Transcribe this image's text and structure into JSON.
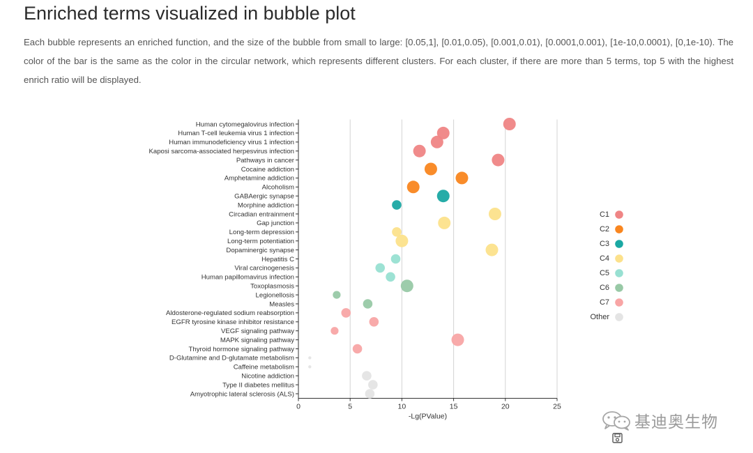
{
  "page": {
    "title": "Enriched terms visualized in bubble plot",
    "description": "Each bubble represents an enriched function, and the size of the bubble from small to large: [0.05,1], [0.01,0.05), [0.001,0.01), [0.0001,0.001), [1e-10,0.0001), [0,1e-10). The color of the bar is the same as the color in the circular network, which represents different clusters. For each cluster, if there are more than 5 terms, top 5 with the highest enrich ratio will be displayed."
  },
  "watermark": {
    "text": "基迪奥生物",
    "icon": "wechat-icon"
  },
  "save_icon": "save-icon",
  "chart_data": {
    "type": "scatter",
    "title": "",
    "xlabel": "-Lg(PValue)",
    "ylabel": "",
    "xlim": [
      0,
      25
    ],
    "xticks": [
      0,
      5,
      10,
      15,
      20,
      25
    ],
    "grid": "vertical",
    "legend_position": "right",
    "size_classes": [
      "[0.05,1]",
      "[0.01,0.05)",
      "[0.001,0.01)",
      "[0.0001,0.001)",
      "[1e-10,0.0001)",
      "[0,1e-10)"
    ],
    "clusters": [
      {
        "name": "C1",
        "color": "#ef8585"
      },
      {
        "name": "C2",
        "color": "#f9861f"
      },
      {
        "name": "C3",
        "color": "#1aa8a3"
      },
      {
        "name": "C4",
        "color": "#fce18b"
      },
      {
        "name": "C5",
        "color": "#98e0d2"
      },
      {
        "name": "C6",
        "color": "#98c9a6"
      },
      {
        "name": "C7",
        "color": "#f8a5a5"
      },
      {
        "name": "Other",
        "color": "#e4e4e4"
      }
    ],
    "categories": [
      "Human cytomegalovirus infection",
      "Human T-cell leukemia virus 1 infection",
      "Human immunodeficiency virus 1 infection",
      "Kaposi sarcoma-associated herpesvirus infection",
      "Pathways in cancer",
      "Cocaine addiction",
      "Amphetamine addiction",
      "Alcoholism",
      "GABAergic synapse",
      "Morphine addiction",
      "Circadian entrainment",
      "Gap junction",
      "Long-term depression",
      "Long-term potentiation",
      "Dopaminergic synapse",
      "Hepatitis C",
      "Viral carcinogenesis",
      "Human papillomavirus infection",
      "Toxoplasmosis",
      "Legionellosis",
      "Measles",
      "Aldosterone-regulated sodium reabsorption",
      "EGFR tyrosine kinase inhibitor resistance",
      "VEGF signaling pathway",
      "MAPK signaling pathway",
      "Thyroid hormone signaling pathway",
      "D-Glutamine and D-glutamate metabolism",
      "Caffeine metabolism",
      "Nicotine addiction",
      "Type II diabetes mellitus",
      "Amyotrophic lateral sclerosis (ALS)"
    ],
    "points": [
      {
        "term": "Human cytomegalovirus infection",
        "x": 20.4,
        "cluster": "C1",
        "size_class": 5
      },
      {
        "term": "Human T-cell leukemia virus 1 infection",
        "x": 14.0,
        "cluster": "C1",
        "size_class": 5
      },
      {
        "term": "Human immunodeficiency virus 1 infection",
        "x": 13.4,
        "cluster": "C1",
        "size_class": 5
      },
      {
        "term": "Kaposi sarcoma-associated herpesvirus infection",
        "x": 11.7,
        "cluster": "C1",
        "size_class": 5
      },
      {
        "term": "Pathways in cancer",
        "x": 19.3,
        "cluster": "C1",
        "size_class": 5
      },
      {
        "term": "Cocaine addiction",
        "x": 12.8,
        "cluster": "C2",
        "size_class": 5
      },
      {
        "term": "Amphetamine addiction",
        "x": 15.8,
        "cluster": "C2",
        "size_class": 5
      },
      {
        "term": "Alcoholism",
        "x": 11.1,
        "cluster": "C2",
        "size_class": 5
      },
      {
        "term": "GABAergic synapse",
        "x": 14.0,
        "cluster": "C3",
        "size_class": 5
      },
      {
        "term": "Morphine addiction",
        "x": 9.5,
        "cluster": "C3",
        "size_class": 3
      },
      {
        "term": "Circadian entrainment",
        "x": 19.0,
        "cluster": "C4",
        "size_class": 5
      },
      {
        "term": "Gap junction",
        "x": 14.1,
        "cluster": "C4",
        "size_class": 5
      },
      {
        "term": "Long-term depression",
        "x": 9.5,
        "cluster": "C4",
        "size_class": 3
      },
      {
        "term": "Long-term potentiation",
        "x": 10.0,
        "cluster": "C4",
        "size_class": 5
      },
      {
        "term": "Dopaminergic synapse",
        "x": 18.7,
        "cluster": "C4",
        "size_class": 5
      },
      {
        "term": "Hepatitis C",
        "x": 9.4,
        "cluster": "C5",
        "size_class": 3
      },
      {
        "term": "Viral carcinogenesis",
        "x": 7.9,
        "cluster": "C5",
        "size_class": 3
      },
      {
        "term": "Human papillomavirus infection",
        "x": 8.9,
        "cluster": "C5",
        "size_class": 3
      },
      {
        "term": "Toxoplasmosis",
        "x": 10.5,
        "cluster": "C6",
        "size_class": 5
      },
      {
        "term": "Legionellosis",
        "x": 3.7,
        "cluster": "C6",
        "size_class": 2
      },
      {
        "term": "Measles",
        "x": 6.7,
        "cluster": "C6",
        "size_class": 3
      },
      {
        "term": "Aldosterone-regulated sodium reabsorption",
        "x": 4.6,
        "cluster": "C7",
        "size_class": 3
      },
      {
        "term": "EGFR tyrosine kinase inhibitor resistance",
        "x": 7.3,
        "cluster": "C7",
        "size_class": 3
      },
      {
        "term": "VEGF signaling pathway",
        "x": 3.5,
        "cluster": "C7",
        "size_class": 2
      },
      {
        "term": "MAPK signaling pathway",
        "x": 15.4,
        "cluster": "C7",
        "size_class": 5
      },
      {
        "term": "Thyroid hormone signaling pathway",
        "x": 5.7,
        "cluster": "C7",
        "size_class": 3
      },
      {
        "term": "D-Glutamine and D-glutamate metabolism",
        "x": 1.1,
        "cluster": "Other",
        "size_class": 0
      },
      {
        "term": "Caffeine metabolism",
        "x": 1.1,
        "cluster": "Other",
        "size_class": 0
      },
      {
        "term": "Nicotine addiction",
        "x": 6.6,
        "cluster": "Other",
        "size_class": 3
      },
      {
        "term": "Type II diabetes mellitus",
        "x": 7.2,
        "cluster": "Other",
        "size_class": 3
      },
      {
        "term": "Amyotrophic lateral sclerosis (ALS)",
        "x": 6.9,
        "cluster": "Other",
        "size_class": 3
      }
    ]
  }
}
